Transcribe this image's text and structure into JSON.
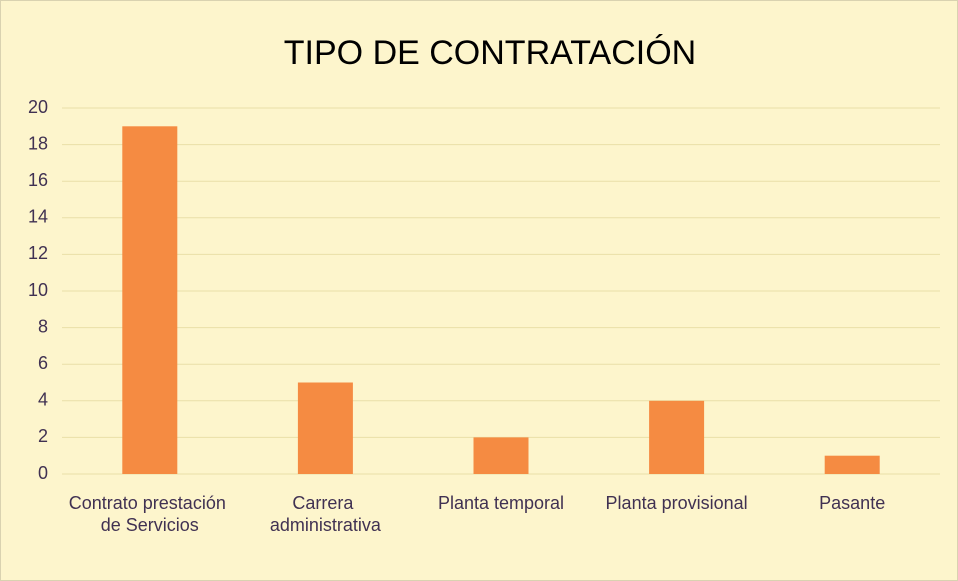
{
  "chart_data": {
    "type": "bar",
    "title": "TIPO DE CONTRATACIÓN",
    "categories": [
      "Contrato prestación de Servicios",
      "Carrera administrativa",
      "Planta temporal",
      "Planta provisional",
      "Pasante"
    ],
    "values": [
      19,
      5,
      2,
      4,
      1
    ],
    "color": "#f58b42",
    "ylim": [
      0,
      20
    ],
    "yticks": [
      0,
      2,
      4,
      6,
      8,
      10,
      12,
      14,
      16,
      18,
      20
    ],
    "grid": true
  }
}
